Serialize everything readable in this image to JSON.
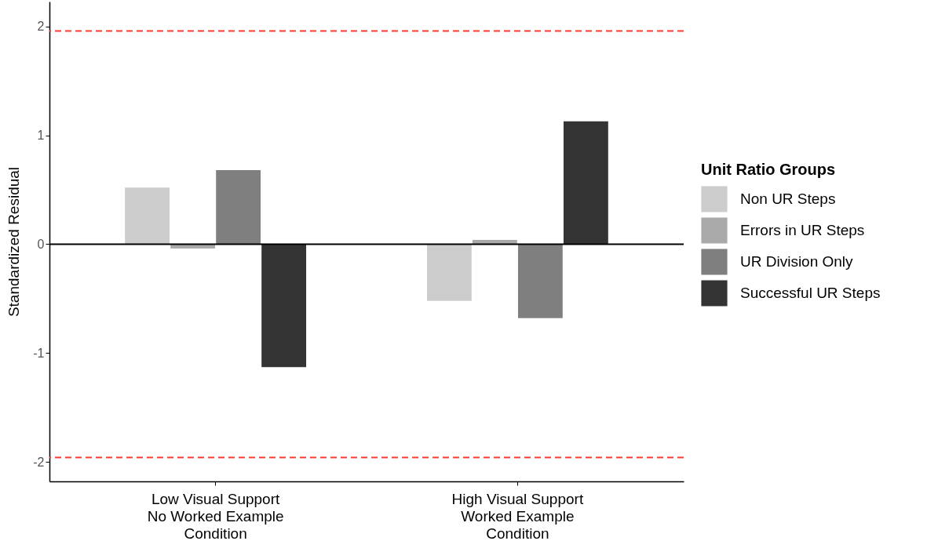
{
  "chart_data": {
    "type": "bar",
    "ylabel": "Standardized Residual",
    "legend_title": "Unit Ratio Groups",
    "legend": "right",
    "grid": false,
    "categories": [
      "Low Visual Support\nNo Worked Example\nCondition",
      "High Visual Support\nWorked Example\nCondition"
    ],
    "series": [
      {
        "name": "Non UR Steps",
        "color": "#cccccc",
        "values": [
          0.52,
          -0.52
        ]
      },
      {
        "name": "Errors in UR Steps",
        "color": "#aaaaaa",
        "values": [
          -0.04,
          0.04
        ]
      },
      {
        "name": "UR Division Only",
        "color": "#7f7f7f",
        "values": [
          0.68,
          -0.68
        ]
      },
      {
        "name": "Successful UR Steps",
        "color": "#333333",
        "values": [
          -1.13,
          1.13
        ]
      }
    ],
    "ylim": [
      -2.18,
      2.23
    ],
    "yticks": [
      -2,
      -1,
      0,
      1,
      2
    ],
    "ref_lines": [
      {
        "axis": "y",
        "value": 1.96,
        "color": "#ff3b30",
        "line_style": "dashed"
      },
      {
        "axis": "y",
        "value": -1.96,
        "color": "#ff3b30",
        "line_style": "dashed"
      },
      {
        "axis": "y",
        "value": 0,
        "color": "#000000",
        "line_style": "solid"
      }
    ]
  }
}
